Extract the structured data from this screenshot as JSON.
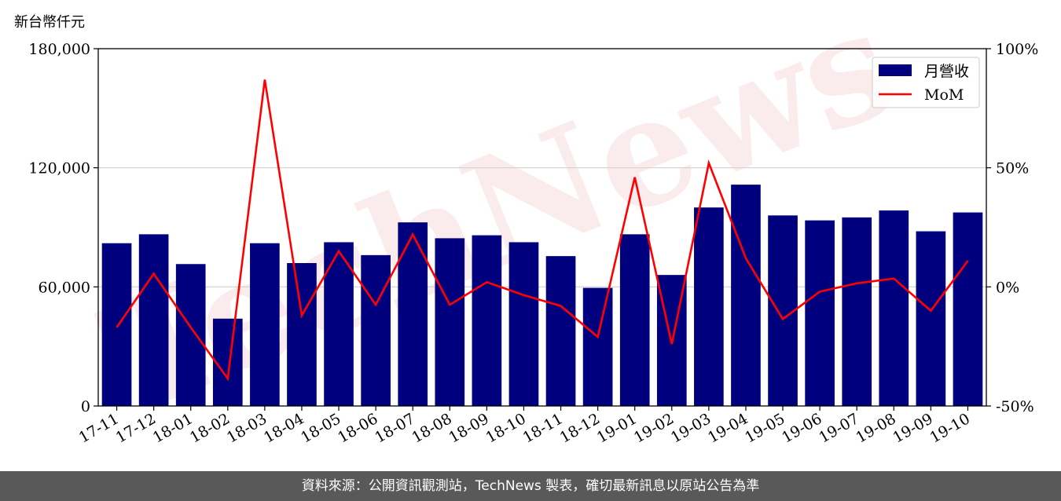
{
  "unit_label": "新台幣仟元",
  "footer_text": "資料來源：公開資訊觀測站，TechNews 製表，確切最新訊息以原站公告為準",
  "watermark": "TechNews",
  "colors": {
    "bar": "#00007f",
    "line": "#ff0000",
    "footer_bg": "#595959"
  },
  "chart_data": {
    "type": "bar",
    "categories": [
      "17-11",
      "17-12",
      "18-01",
      "18-02",
      "18-03",
      "18-04",
      "18-05",
      "18-06",
      "18-07",
      "18-08",
      "18-09",
      "18-10",
      "18-11",
      "18-12",
      "19-01",
      "19-02",
      "19-03",
      "19-04",
      "19-05",
      "19-06",
      "19-07",
      "19-08",
      "19-09",
      "19-10"
    ],
    "series": [
      {
        "name": "月營收",
        "axis": "left",
        "kind": "bar",
        "values": [
          82000,
          86500,
          71500,
          44000,
          82000,
          72000,
          82500,
          76000,
          92500,
          84500,
          86000,
          82500,
          75500,
          59500,
          86500,
          66000,
          100000,
          111500,
          96000,
          93500,
          95000,
          98500,
          88000,
          97500
        ]
      },
      {
        "name": "MoM",
        "axis": "right",
        "kind": "line",
        "unit": "%",
        "values": [
          -17,
          5.5,
          -17,
          -38.5,
          87,
          -12,
          15,
          -7.5,
          22,
          -7.5,
          2,
          -3.5,
          -8,
          -21,
          46,
          -24,
          52,
          12,
          -13.5,
          -2,
          1.5,
          3.5,
          -10,
          11
        ]
      }
    ],
    "left_axis": {
      "ylim": [
        0,
        180000
      ],
      "ticks": [
        0,
        60000,
        120000,
        180000
      ],
      "tick_labels": [
        "0",
        "60,000",
        "120,000",
        "180,000"
      ]
    },
    "right_axis": {
      "ylim": [
        -50,
        100
      ],
      "ticks": [
        -50,
        0,
        50,
        100
      ],
      "tick_labels": [
        "-50%",
        "0%",
        "50%",
        "100%"
      ]
    },
    "grid": "horizontal",
    "legend": "top-right"
  }
}
